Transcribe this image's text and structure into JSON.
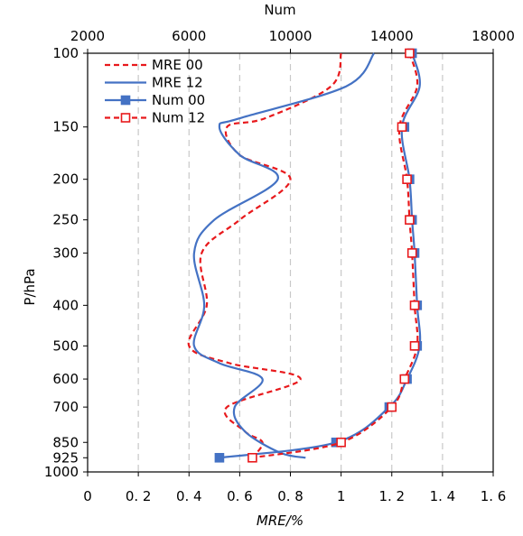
{
  "chart_data": {
    "type": "line",
    "title": "",
    "xlabel_bottom": "MRE/%",
    "xlabel_top": "Num",
    "ylabel": "P/hPa",
    "x_bottom_lim": [
      0,
      1.6
    ],
    "x_bottom_ticks": [
      "0",
      "0. 2",
      "0. 4",
      "0. 6",
      "0. 8",
      "1",
      "1. 2",
      "1. 4",
      "1. 6"
    ],
    "x_top_lim": [
      2000,
      18000
    ],
    "x_top_ticks": [
      "2000",
      "6000",
      "10000",
      "14000",
      "18000"
    ],
    "y_scale": "log",
    "y_lim": [
      100,
      1000
    ],
    "y_reversed": true,
    "y_ticks": [
      "100",
      "150",
      "200",
      "250",
      "300",
      "400",
      "500",
      "600",
      "700",
      "850",
      "925",
      "1000"
    ],
    "grid": "vertical-dashed",
    "legend_position": "top-left",
    "series": [
      {
        "name": "MRE 00",
        "axis": "bottom",
        "style": "dashed",
        "color": "#e8191c",
        "marker": "none",
        "points": [
          [
            1.0,
            100
          ],
          [
            0.96,
            120
          ],
          [
            0.7,
            143
          ],
          [
            0.55,
            150
          ],
          [
            0.6,
            175
          ],
          [
            0.8,
            200
          ],
          [
            0.6,
            250
          ],
          [
            0.45,
            300
          ],
          [
            0.47,
            400
          ],
          [
            0.4,
            500
          ],
          [
            0.56,
            550
          ],
          [
            0.84,
            600
          ],
          [
            0.55,
            700
          ],
          [
            0.62,
            800
          ],
          [
            0.69,
            850
          ],
          [
            0.65,
            925
          ]
        ]
      },
      {
        "name": "MRE 12",
        "axis": "bottom",
        "style": "solid",
        "color": "#4472c4",
        "marker": "none",
        "points": [
          [
            1.13,
            100
          ],
          [
            1.02,
            120
          ],
          [
            0.6,
            143
          ],
          [
            0.52,
            150
          ],
          [
            0.6,
            175
          ],
          [
            0.75,
            200
          ],
          [
            0.5,
            250
          ],
          [
            0.42,
            300
          ],
          [
            0.46,
            400
          ],
          [
            0.42,
            500
          ],
          [
            0.52,
            550
          ],
          [
            0.69,
            600
          ],
          [
            0.58,
            700
          ],
          [
            0.62,
            800
          ],
          [
            0.76,
            900
          ],
          [
            0.86,
            925
          ]
        ]
      },
      {
        "name": "Num 00",
        "axis": "top",
        "style": "solid",
        "color": "#4472c4",
        "marker": "filled-square",
        "points": [
          [
            14800,
            100
          ],
          [
            14500,
            150
          ],
          [
            14700,
            200
          ],
          [
            14800,
            250
          ],
          [
            14900,
            300
          ],
          [
            15000,
            400
          ],
          [
            15000,
            500
          ],
          [
            14600,
            600
          ],
          [
            13900,
            700
          ],
          [
            11800,
            850
          ],
          [
            7200,
            925
          ]
        ],
        "curve": [
          [
            14800,
            100
          ],
          [
            15100,
            120
          ],
          [
            14400,
            150
          ],
          [
            14700,
            200
          ],
          [
            14800,
            250
          ],
          [
            14900,
            300
          ],
          [
            15000,
            400
          ],
          [
            15100,
            500
          ],
          [
            14600,
            600
          ],
          [
            13900,
            700
          ],
          [
            11800,
            850
          ],
          [
            7200,
            925
          ]
        ]
      },
      {
        "name": "Num 12",
        "axis": "top",
        "style": "dashed",
        "color": "#e8191c",
        "marker": "open-square",
        "points": [
          [
            14700,
            100
          ],
          [
            14400,
            150
          ],
          [
            14600,
            200
          ],
          [
            14700,
            250
          ],
          [
            14800,
            300
          ],
          [
            14900,
            400
          ],
          [
            14900,
            500
          ],
          [
            14500,
            600
          ],
          [
            14000,
            700
          ],
          [
            12000,
            850
          ],
          [
            8500,
            925
          ]
        ],
        "curve": [
          [
            14700,
            100
          ],
          [
            15000,
            120
          ],
          [
            14300,
            150
          ],
          [
            14600,
            200
          ],
          [
            14700,
            250
          ],
          [
            14800,
            300
          ],
          [
            14900,
            400
          ],
          [
            15000,
            500
          ],
          [
            14500,
            600
          ],
          [
            14000,
            700
          ],
          [
            12000,
            850
          ],
          [
            8500,
            925
          ]
        ]
      }
    ]
  }
}
